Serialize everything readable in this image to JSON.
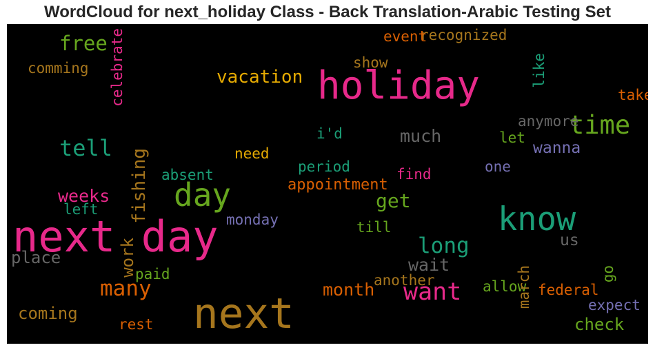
{
  "chart_data": {
    "type": "wordcloud",
    "title": "WordCloud for next_holiday Class - Back Translation-Arabic Testing Set",
    "background": "#000000",
    "words": [
      {
        "text": "next day",
        "weight": 1.0,
        "color": "#e7298a",
        "orientation": "horizontal"
      },
      {
        "text": "next",
        "weight": 0.98,
        "color": "#a6761d",
        "orientation": "horizontal"
      },
      {
        "text": "holiday",
        "weight": 0.88,
        "color": "#e7298a",
        "orientation": "horizontal"
      },
      {
        "text": "know",
        "weight": 0.7,
        "color": "#1b9e77",
        "orientation": "horizontal"
      },
      {
        "text": "day",
        "weight": 0.68,
        "color": "#66a61e",
        "orientation": "horizontal"
      },
      {
        "text": "time",
        "weight": 0.48,
        "color": "#66a61e",
        "orientation": "horizontal"
      },
      {
        "text": "want",
        "weight": 0.44,
        "color": "#e7298a",
        "orientation": "horizontal"
      },
      {
        "text": "tell",
        "weight": 0.38,
        "color": "#1b9e77",
        "orientation": "horizontal"
      },
      {
        "text": "long",
        "weight": 0.36,
        "color": "#1b9e77",
        "orientation": "horizontal"
      },
      {
        "text": "many",
        "weight": 0.36,
        "color": "#d95f02",
        "orientation": "horizontal"
      },
      {
        "text": "free",
        "weight": 0.32,
        "color": "#66a61e",
        "orientation": "horizontal"
      },
      {
        "text": "get",
        "weight": 0.3,
        "color": "#66a61e",
        "orientation": "horizontal"
      },
      {
        "text": "vacation",
        "weight": 0.26,
        "color": "#e6ab02",
        "orientation": "horizontal"
      },
      {
        "text": "fishing",
        "weight": 0.26,
        "color": "#a6761d",
        "orientation": "vertical"
      },
      {
        "text": "much",
        "weight": 0.24,
        "color": "#666666",
        "orientation": "horizontal"
      },
      {
        "text": "wait",
        "weight": 0.24,
        "color": "#666666",
        "orientation": "horizontal"
      },
      {
        "text": "month",
        "weight": 0.24,
        "color": "#d95f02",
        "orientation": "horizontal"
      },
      {
        "text": "weeks",
        "weight": 0.24,
        "color": "#e7298a",
        "orientation": "horizontal"
      },
      {
        "text": "check",
        "weight": 0.22,
        "color": "#66a61e",
        "orientation": "horizontal"
      },
      {
        "text": "coming",
        "weight": 0.22,
        "color": "#a6761d",
        "orientation": "horizontal"
      },
      {
        "text": "place",
        "weight": 0.22,
        "color": "#666666",
        "orientation": "horizontal"
      },
      {
        "text": "work",
        "weight": 0.22,
        "color": "#a6761d",
        "orientation": "vertical"
      },
      {
        "text": "wanna",
        "weight": 0.2,
        "color": "#7570b3",
        "orientation": "horizontal"
      },
      {
        "text": "us",
        "weight": 0.2,
        "color": "#666666",
        "orientation": "horizontal"
      },
      {
        "text": "appointment",
        "weight": 0.18,
        "color": "#d95f02",
        "orientation": "horizontal"
      },
      {
        "text": "another",
        "weight": 0.16,
        "color": "#a6761d",
        "orientation": "horizontal"
      },
      {
        "text": "recognized",
        "weight": 0.16,
        "color": "#a6761d",
        "orientation": "horizontal"
      },
      {
        "text": "event",
        "weight": 0.16,
        "color": "#d95f02",
        "orientation": "horizontal"
      },
      {
        "text": "show",
        "weight": 0.16,
        "color": "#a6761d",
        "orientation": "horizontal"
      },
      {
        "text": "comming",
        "weight": 0.16,
        "color": "#a6761d",
        "orientation": "horizontal"
      },
      {
        "text": "celebrate",
        "weight": 0.16,
        "color": "#e7298a",
        "orientation": "vertical"
      },
      {
        "text": "like",
        "weight": 0.16,
        "color": "#1b9e77",
        "orientation": "vertical"
      },
      {
        "text": "take",
        "weight": 0.16,
        "color": "#d95f02",
        "orientation": "horizontal"
      },
      {
        "text": "anymore",
        "weight": 0.16,
        "color": "#666666",
        "orientation": "horizontal"
      },
      {
        "text": "i'd",
        "weight": 0.16,
        "color": "#1b9e77",
        "orientation": "horizontal"
      },
      {
        "text": "let",
        "weight": 0.16,
        "color": "#66a61e",
        "orientation": "horizontal"
      },
      {
        "text": "need",
        "weight": 0.16,
        "color": "#e6ab02",
        "orientation": "horizontal"
      },
      {
        "text": "absent",
        "weight": 0.16,
        "color": "#1b9e77",
        "orientation": "horizontal"
      },
      {
        "text": "period",
        "weight": 0.16,
        "color": "#1b9e77",
        "orientation": "horizontal"
      },
      {
        "text": "find",
        "weight": 0.16,
        "color": "#e7298a",
        "orientation": "horizontal"
      },
      {
        "text": "one",
        "weight": 0.16,
        "color": "#7570b3",
        "orientation": "horizontal"
      },
      {
        "text": "left",
        "weight": 0.16,
        "color": "#1b9e77",
        "orientation": "horizontal"
      },
      {
        "text": "monday",
        "weight": 0.16,
        "color": "#7570b3",
        "orientation": "horizontal"
      },
      {
        "text": "till",
        "weight": 0.16,
        "color": "#66a61e",
        "orientation": "horizontal"
      },
      {
        "text": "paid",
        "weight": 0.16,
        "color": "#66a61e",
        "orientation": "horizontal"
      },
      {
        "text": "allow",
        "weight": 0.16,
        "color": "#66a61e",
        "orientation": "horizontal"
      },
      {
        "text": "march",
        "weight": 0.16,
        "color": "#a6761d",
        "orientation": "vertical"
      },
      {
        "text": "go",
        "weight": 0.16,
        "color": "#66a61e",
        "orientation": "vertical"
      },
      {
        "text": "federal",
        "weight": 0.16,
        "color": "#d95f02",
        "orientation": "horizontal"
      },
      {
        "text": "expect",
        "weight": 0.16,
        "color": "#7570b3",
        "orientation": "horizontal"
      },
      {
        "text": "rest",
        "weight": 0.16,
        "color": "#d95f02",
        "orientation": "horizontal"
      }
    ]
  }
}
